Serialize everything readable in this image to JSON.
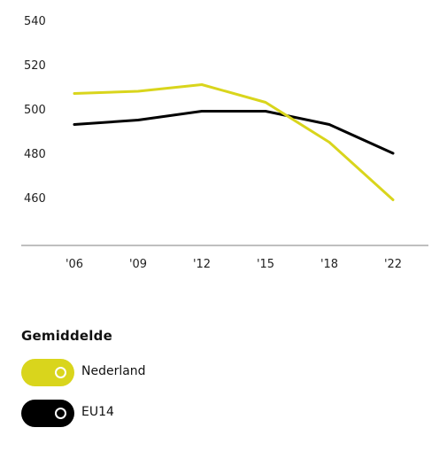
{
  "chart_data": {
    "type": "line",
    "categories": [
      "'06",
      "'09",
      "'12",
      "'15",
      "'18",
      "'22"
    ],
    "ylim": [
      440,
      540
    ],
    "yticks": [
      540,
      520,
      500,
      480,
      460
    ],
    "series": [
      {
        "name": "Nederland",
        "color": "#d9d51c",
        "values": [
          507,
          508,
          511,
          503,
          485,
          459
        ]
      },
      {
        "name": "EU14",
        "color": "#000000",
        "values": [
          493,
          495,
          499,
          499,
          493,
          480
        ]
      }
    ]
  },
  "legend": {
    "title": "Gemiddelde",
    "items": [
      {
        "label": "Nederland",
        "color": "#d9d51c",
        "icon": "toggle-on-icon"
      },
      {
        "label": "EU14",
        "color": "#000000",
        "icon": "toggle-on-icon"
      }
    ]
  }
}
